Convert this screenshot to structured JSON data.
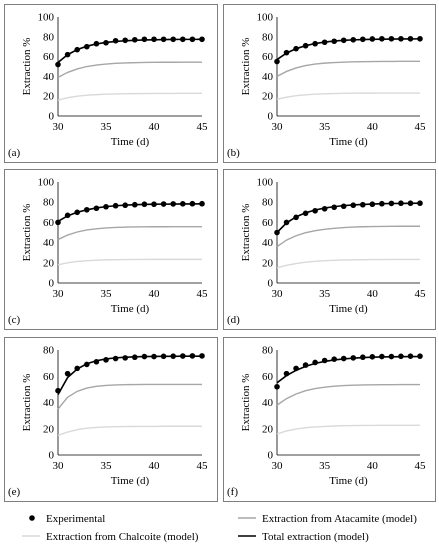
{
  "chart_data": [
    {
      "type": "line",
      "panel_label": "(a)",
      "xlabel": "Time (d)",
      "ylabel": "Extraction %",
      "xlim": [
        30,
        45
      ],
      "ylim": [
        0,
        100
      ],
      "xticks": [
        30,
        35,
        40,
        45
      ],
      "yticks": [
        0,
        20,
        40,
        60,
        80,
        100
      ],
      "x": [
        30,
        31,
        32,
        33,
        34,
        35,
        36,
        37,
        38,
        39,
        40,
        41,
        42,
        43,
        44,
        45
      ],
      "series": [
        {
          "name": "Experimental",
          "style": "points",
          "color": "#000000",
          "values": [
            52,
            62,
            67,
            70,
            73,
            74,
            76,
            76.5,
            77,
            77.5,
            77.5,
            77.5,
            77.5,
            77.5,
            77.5,
            77.5
          ]
        },
        {
          "name": "Total extraction (model)",
          "style": "line",
          "color": "#000000",
          "values": [
            54,
            62,
            67,
            70.5,
            72.8,
            74.3,
            75.3,
            76,
            76.5,
            76.8,
            77,
            77.2,
            77.3,
            77.4,
            77.4,
            77.5
          ]
        },
        {
          "name": "Extraction from Atacamite (model)",
          "style": "line",
          "color": "#a6a6a6",
          "values": [
            39,
            44,
            47.5,
            50,
            51.5,
            52.5,
            53.2,
            53.6,
            53.9,
            54.1,
            54.2,
            54.3,
            54.3,
            54.4,
            54.4,
            54.4
          ]
        },
        {
          "name": "Extraction from Chalcoite (model)",
          "style": "line",
          "color": "#d9d9d9",
          "values": [
            16,
            18.5,
            20,
            21,
            21.6,
            22,
            22.3,
            22.5,
            22.6,
            22.7,
            22.8,
            22.8,
            22.8,
            22.9,
            22.9,
            22.9
          ]
        }
      ]
    },
    {
      "type": "line",
      "panel_label": "(b)",
      "xlabel": "Time (d)",
      "ylabel": "Extraction %",
      "xlim": [
        30,
        45
      ],
      "ylim": [
        0,
        100
      ],
      "xticks": [
        30,
        35,
        40,
        45
      ],
      "yticks": [
        0,
        20,
        40,
        60,
        80,
        100
      ],
      "x": [
        30,
        31,
        32,
        33,
        34,
        35,
        36,
        37,
        38,
        39,
        40,
        41,
        42,
        43,
        44,
        45
      ],
      "series": [
        {
          "name": "Experimental",
          "style": "points",
          "color": "#000000",
          "values": [
            55,
            64,
            68,
            71,
            73,
            74.5,
            75.5,
            76.5,
            77,
            77.5,
            77.8,
            78,
            78,
            78,
            78,
            78
          ]
        },
        {
          "name": "Total extraction (model)",
          "style": "line",
          "color": "#000000",
          "values": [
            57,
            63.5,
            68,
            71,
            73.2,
            74.7,
            75.7,
            76.4,
            76.9,
            77.2,
            77.5,
            77.6,
            77.7,
            77.8,
            77.8,
            77.9
          ]
        },
        {
          "name": "Extraction from Atacamite (model)",
          "style": "line",
          "color": "#a6a6a6",
          "values": [
            40,
            45,
            48.5,
            51,
            52.5,
            53.4,
            54,
            54.4,
            54.7,
            54.9,
            55,
            55.1,
            55.1,
            55.2,
            55.2,
            55.2
          ]
        },
        {
          "name": "Extraction from Chalcoite (model)",
          "style": "line",
          "color": "#d9d9d9",
          "values": [
            17,
            19,
            20.5,
            21.4,
            22,
            22.4,
            22.7,
            22.9,
            23,
            23.1,
            23.1,
            23.2,
            23.2,
            23.2,
            23.2,
            23.2
          ]
        }
      ]
    },
    {
      "type": "line",
      "panel_label": "(c)",
      "xlabel": "Time (d)",
      "ylabel": "Extraction %",
      "xlim": [
        30,
        45
      ],
      "ylim": [
        0,
        100
      ],
      "xticks": [
        30,
        35,
        40,
        45
      ],
      "yticks": [
        0,
        20,
        40,
        60,
        80,
        100
      ],
      "x": [
        30,
        31,
        32,
        33,
        34,
        35,
        36,
        37,
        38,
        39,
        40,
        41,
        42,
        43,
        44,
        45
      ],
      "series": [
        {
          "name": "Experimental",
          "style": "points",
          "color": "#000000",
          "values": [
            60,
            67,
            70,
            72.5,
            74,
            75.5,
            76.5,
            77,
            77.5,
            78,
            78,
            78.2,
            78.3,
            78.4,
            78.5,
            78.5
          ]
        },
        {
          "name": "Total extraction (model)",
          "style": "line",
          "color": "#000000",
          "values": [
            61,
            66.5,
            70,
            72.5,
            74.3,
            75.6,
            76.5,
            77.1,
            77.5,
            77.8,
            78,
            78.1,
            78.2,
            78.3,
            78.3,
            78.4
          ]
        },
        {
          "name": "Extraction from Atacamite (model)",
          "style": "line",
          "color": "#a6a6a6",
          "values": [
            43,
            47.5,
            50.5,
            52.5,
            53.7,
            54.5,
            55,
            55.3,
            55.5,
            55.6,
            55.7,
            55.7,
            55.8,
            55.8,
            55.8,
            55.8
          ]
        },
        {
          "name": "Extraction from Chalcoite (model)",
          "style": "line",
          "color": "#d9d9d9",
          "values": [
            18,
            20,
            21.3,
            22.1,
            22.6,
            22.9,
            23.1,
            23.2,
            23.3,
            23.3,
            23.4,
            23.4,
            23.4,
            23.4,
            23.4,
            23.4
          ]
        }
      ]
    },
    {
      "type": "line",
      "panel_label": "(d)",
      "xlabel": "Time (d)",
      "ylabel": "Extraction %",
      "xlim": [
        30,
        45
      ],
      "ylim": [
        0,
        100
      ],
      "xticks": [
        30,
        35,
        40,
        45
      ],
      "yticks": [
        0,
        20,
        40,
        60,
        80,
        100
      ],
      "x": [
        30,
        31,
        32,
        33,
        34,
        35,
        36,
        37,
        38,
        39,
        40,
        41,
        42,
        43,
        44,
        45
      ],
      "series": [
        {
          "name": "Experimental",
          "style": "points",
          "color": "#000000",
          "values": [
            50,
            60,
            65,
            69,
            71.5,
            73.5,
            75,
            76,
            77,
            77.5,
            78,
            78.5,
            78.8,
            79,
            79,
            79
          ]
        },
        {
          "name": "Total extraction (model)",
          "style": "line",
          "color": "#000000",
          "values": [
            50,
            59.5,
            65.5,
            69.5,
            72.3,
            74.2,
            75.6,
            76.6,
            77.3,
            77.8,
            78.2,
            78.5,
            78.7,
            78.8,
            78.9,
            79
          ]
        },
        {
          "name": "Extraction from Atacamite (model)",
          "style": "line",
          "color": "#a6a6a6",
          "values": [
            36,
            42.5,
            46.8,
            49.8,
            51.8,
            53.2,
            54.2,
            54.9,
            55.4,
            55.7,
            55.9,
            56,
            56.1,
            56.2,
            56.2,
            56.2
          ]
        },
        {
          "name": "Extraction from Chalcoite (model)",
          "style": "line",
          "color": "#d9d9d9",
          "values": [
            15,
            17.5,
            19.3,
            20.6,
            21.5,
            22.1,
            22.5,
            22.8,
            23,
            23.1,
            23.2,
            23.2,
            23.3,
            23.3,
            23.3,
            23.3
          ]
        }
      ]
    },
    {
      "type": "line",
      "panel_label": "(e)",
      "xlabel": "Time (d)",
      "ylabel": "Extraction %",
      "xlim": [
        30,
        45
      ],
      "ylim": [
        0,
        80
      ],
      "xticks": [
        30,
        35,
        40,
        45
      ],
      "yticks": [
        0,
        20,
        40,
        60,
        80
      ],
      "x": [
        30,
        31,
        32,
        33,
        34,
        35,
        36,
        37,
        38,
        39,
        40,
        41,
        42,
        43,
        44,
        45
      ],
      "series": [
        {
          "name": "Experimental",
          "style": "points",
          "color": "#000000",
          "values": [
            49,
            62,
            66,
            69,
            71,
            72.5,
            73.5,
            74,
            74.5,
            75,
            75,
            75.2,
            75.3,
            75.4,
            75.5,
            75.5
          ]
        },
        {
          "name": "Total extraction (model)",
          "style": "line",
          "color": "#000000",
          "values": [
            46,
            59,
            65.5,
            69.5,
            71.8,
            73.2,
            74,
            74.5,
            74.8,
            75,
            75.1,
            75.2,
            75.2,
            75.3,
            75.3,
            75.3
          ]
        },
        {
          "name": "Extraction from Atacamite (model)",
          "style": "line",
          "color": "#a6a6a6",
          "values": [
            35,
            44,
            48.5,
            51,
            52.3,
            53,
            53.4,
            53.6,
            53.7,
            53.8,
            53.8,
            53.8,
            53.8,
            53.8,
            53.8,
            53.8
          ]
        },
        {
          "name": "Extraction from Chalcoite (model)",
          "style": "line",
          "color": "#d9d9d9",
          "values": [
            15,
            17.5,
            19.3,
            20.4,
            21,
            21.4,
            21.6,
            21.7,
            21.8,
            21.8,
            21.8,
            21.9,
            21.9,
            21.9,
            21.9,
            21.9
          ]
        }
      ]
    },
    {
      "type": "line",
      "panel_label": "(f)",
      "xlabel": "Time (d)",
      "ylabel": "Extraction %",
      "xlim": [
        30,
        45
      ],
      "ylim": [
        0,
        80
      ],
      "xticks": [
        30,
        35,
        40,
        45
      ],
      "yticks": [
        0,
        20,
        40,
        60,
        80
      ],
      "x": [
        30,
        31,
        32,
        33,
        34,
        35,
        36,
        37,
        38,
        39,
        40,
        41,
        42,
        43,
        44,
        45
      ],
      "series": [
        {
          "name": "Experimental",
          "style": "points",
          "color": "#000000",
          "values": [
            52,
            62,
            66,
            68.5,
            70.5,
            72,
            73,
            73.5,
            74,
            74.5,
            74.8,
            75,
            75,
            75.2,
            75.3,
            75.3
          ]
        },
        {
          "name": "Total extraction (model)",
          "style": "line",
          "color": "#000000",
          "values": [
            55,
            60.5,
            64.5,
            67.5,
            69.8,
            71.3,
            72.4,
            73.2,
            73.8,
            74.2,
            74.5,
            74.7,
            74.8,
            74.9,
            75,
            75
          ]
        },
        {
          "name": "Extraction from Atacamite (model)",
          "style": "line",
          "color": "#a6a6a6",
          "values": [
            38,
            43,
            46.5,
            49,
            50.6,
            51.7,
            52.4,
            52.9,
            53.2,
            53.4,
            53.5,
            53.6,
            53.6,
            53.7,
            53.7,
            53.7
          ]
        },
        {
          "name": "Extraction from Chalcoite (model)",
          "style": "line",
          "color": "#d9d9d9",
          "values": [
            16,
            18.3,
            19.8,
            20.8,
            21.4,
            21.8,
            22.1,
            22.3,
            22.4,
            22.5,
            22.5,
            22.6,
            22.6,
            22.6,
            22.6,
            22.6
          ]
        }
      ]
    }
  ],
  "legend": {
    "items": [
      {
        "name": "Experimental",
        "kind": "point",
        "color": "#000000"
      },
      {
        "name": "Extraction from Atacamite (model)",
        "kind": "line",
        "color": "#a6a6a6"
      },
      {
        "name": "Extraction from Chalcoite (model)",
        "kind": "line",
        "color": "#d9d9d9"
      },
      {
        "name": "Total extraction (model)",
        "kind": "line",
        "color": "#000000"
      }
    ]
  }
}
